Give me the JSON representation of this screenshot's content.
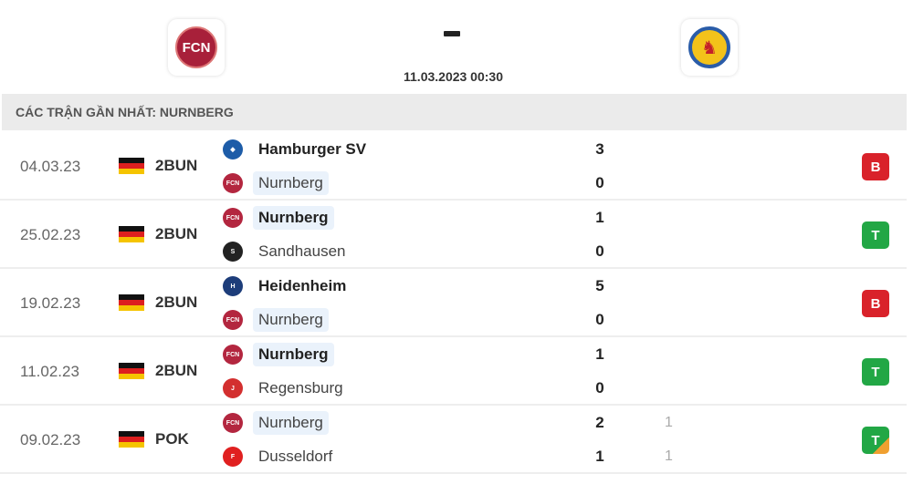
{
  "header": {
    "home_logo": "1. FC Nurnberg crest",
    "away_logo": "Eintracht Braunschweig crest",
    "score": "-",
    "datetime": "11.03.2023 00:30"
  },
  "section_title": "CÁC TRẬN GẦN NHẤT: NURNBERG",
  "colors": {
    "loss": "#d9222a",
    "win": "#22a745",
    "draw_corner": "#f0a030",
    "highlight": "#eaf2fb"
  },
  "matches": [
    {
      "date": "04.03.23",
      "competition": "2BUN",
      "home": {
        "name": "Hamburger SV",
        "score": "3",
        "icon": "hsv-icon"
      },
      "away": {
        "name": "Nurnberg",
        "score": "0",
        "icon": "nurnberg-icon"
      },
      "winner": "home",
      "result": "B"
    },
    {
      "date": "25.02.23",
      "competition": "2BUN",
      "home": {
        "name": "Nurnberg",
        "score": "1",
        "icon": "nurnberg-icon"
      },
      "away": {
        "name": "Sandhausen",
        "score": "0",
        "icon": "sandhausen-icon"
      },
      "winner": "home",
      "result": "T"
    },
    {
      "date": "19.02.23",
      "competition": "2BUN",
      "home": {
        "name": "Heidenheim",
        "score": "5",
        "icon": "heidenheim-icon"
      },
      "away": {
        "name": "Nurnberg",
        "score": "0",
        "icon": "nurnberg-icon"
      },
      "winner": "home",
      "result": "B"
    },
    {
      "date": "11.02.23",
      "competition": "2BUN",
      "home": {
        "name": "Nurnberg",
        "score": "1",
        "icon": "nurnberg-icon"
      },
      "away": {
        "name": "Regensburg",
        "score": "0",
        "icon": "regensburg-icon"
      },
      "winner": "home",
      "result": "T"
    },
    {
      "date": "09.02.23",
      "competition": "POK",
      "home": {
        "name": "Nurnberg",
        "score": "2",
        "ht": "1",
        "icon": "nurnberg-icon"
      },
      "away": {
        "name": "Dusseldorf",
        "score": "1",
        "ht": "1",
        "icon": "dusseldorf-icon"
      },
      "winner": "none",
      "result": "T",
      "penalties": true
    }
  ]
}
